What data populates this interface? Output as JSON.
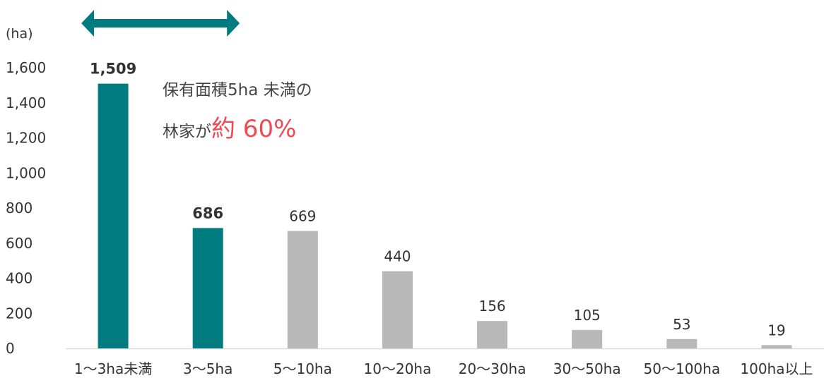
{
  "chart_data": {
    "type": "bar",
    "ylabel": "(ha)",
    "categories": [
      "1〜3ha未満",
      "3〜5ha",
      "5〜10ha",
      "10〜20ha",
      "20〜30ha",
      "30〜50ha",
      "50〜100ha",
      "100ha以上"
    ],
    "values": [
      1509,
      686,
      669,
      440,
      156,
      105,
      53,
      19
    ],
    "value_labels": [
      "1,509",
      "686",
      "669",
      "440",
      "156",
      "105",
      "53",
      "19"
    ],
    "highlighted": [
      true,
      true,
      false,
      false,
      false,
      false,
      false,
      false
    ],
    "ylim": [
      0,
      1600
    ],
    "yticks": [
      0,
      200,
      400,
      600,
      800,
      1000,
      1200,
      1400,
      1600
    ],
    "ytick_labels": [
      "0",
      "200",
      "400",
      "600",
      "800",
      "1,000",
      "1,200",
      "1,400",
      "1,600"
    ],
    "grid": false,
    "colors": {
      "highlight": "#007c80",
      "other": "#b8b8b8",
      "accent_text": "#ee4a52"
    },
    "annotation": {
      "line1": "保有面積5ha 未満の",
      "line2_prefix": "林家が",
      "line2_emphasis": "約 60%"
    },
    "bracket_arrow": {
      "from_category": "1〜3ha未満",
      "to_category": "3〜5ha",
      "icon": "double-headed-arrow"
    }
  }
}
